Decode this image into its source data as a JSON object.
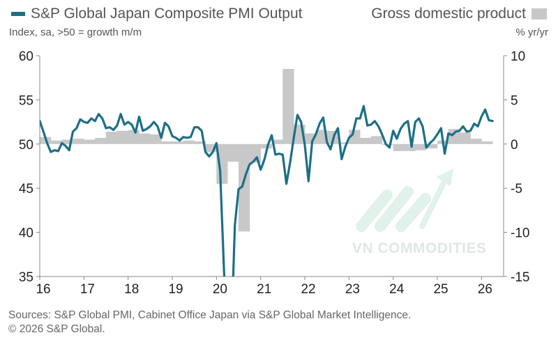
{
  "header": {
    "pmi_legend": "S&P Global Japan Composite PMI Output",
    "gdp_legend": "Gross domestic product",
    "left_axis_title": "Index, sa, >50 = growth m/m",
    "right_axis_title": "% yr/yr"
  },
  "footer": {
    "line1": "Sources: S&P Global PMI, Cabinet Office Japan via S&P Global Market Intelligence.",
    "line2": "© 2026 S&P Global."
  },
  "watermark": {
    "text": "VN COMMODITIES"
  },
  "colors": {
    "pmi": "#1c6f87",
    "gdp": "#c8c8c8",
    "axis": "#888888"
  },
  "chart_data": {
    "type": "bar+line",
    "title": "S&P Global Japan Composite PMI Output vs Gross domestic product",
    "x_labels": [
      "16",
      "17",
      "18",
      "19",
      "20",
      "21",
      "22",
      "23",
      "24",
      "25",
      "26"
    ],
    "x_range": [
      2016.0,
      2026.5
    ],
    "left_axis": {
      "label": "Index, sa, >50 = growth m/m",
      "ylim": [
        35,
        60
      ],
      "ticks": [
        35,
        40,
        45,
        50,
        55,
        60
      ]
    },
    "right_axis": {
      "label": "% yr/yr",
      "ylim": [
        -15,
        10
      ],
      "ticks": [
        -15,
        -10,
        -5,
        0,
        5,
        10
      ]
    },
    "series": [
      {
        "name": "Gross domestic product",
        "type": "bar",
        "axis": "right",
        "x": [
          2016.0,
          2016.25,
          2016.5,
          2016.75,
          2017.0,
          2017.25,
          2017.5,
          2017.75,
          2018.0,
          2018.25,
          2018.5,
          2018.75,
          2019.0,
          2019.25,
          2019.5,
          2019.75,
          2020.0,
          2020.25,
          2020.5,
          2020.75,
          2021.0,
          2021.25,
          2021.5,
          2021.75,
          2022.0,
          2022.25,
          2022.5,
          2022.75,
          2023.0,
          2023.25,
          2023.5,
          2023.75,
          2024.0,
          2024.25,
          2024.5,
          2024.75,
          2025.0,
          2025.25,
          2025.5,
          2025.75,
          2026.0
        ],
        "values": [
          0.8,
          0.4,
          0.5,
          0.6,
          0.5,
          0.7,
          1.4,
          1.5,
          1.6,
          1.2,
          1.1,
          0.3,
          0.3,
          0.4,
          0.3,
          -0.9,
          -4.5,
          -2.0,
          -9.9,
          -2.1,
          -0.5,
          0.5,
          8.5,
          2.2,
          1.2,
          1.6,
          1.5,
          0.2,
          1.6,
          0.7,
          0.9,
          -0.1,
          -0.8,
          -0.8,
          -0.7,
          -0.5,
          0.4,
          1.7,
          1.3,
          0.6,
          0.3
        ]
      },
      {
        "name": "S&P Global Japan Composite PMI Output",
        "type": "line",
        "axis": "left",
        "x": [
          2016.0,
          2016.0833,
          2016.1667,
          2016.25,
          2016.3333,
          2016.4167,
          2016.5,
          2016.5833,
          2016.6667,
          2016.75,
          2016.8333,
          2016.9167,
          2017.0,
          2017.0833,
          2017.1667,
          2017.25,
          2017.3333,
          2017.4167,
          2017.5,
          2017.5833,
          2017.6667,
          2017.75,
          2017.8333,
          2017.9167,
          2018.0,
          2018.0833,
          2018.1667,
          2018.25,
          2018.3333,
          2018.4167,
          2018.5,
          2018.5833,
          2018.6667,
          2018.75,
          2018.8333,
          2018.9167,
          2019.0,
          2019.0833,
          2019.1667,
          2019.25,
          2019.3333,
          2019.4167,
          2019.5,
          2019.5833,
          2019.6667,
          2019.75,
          2019.8333,
          2019.9167,
          2020.0,
          2020.0833,
          2020.1667,
          2020.25,
          2020.3333,
          2020.4167,
          2020.5,
          2020.5833,
          2020.6667,
          2020.75,
          2020.8333,
          2020.9167,
          2021.0,
          2021.0833,
          2021.1667,
          2021.25,
          2021.3333,
          2021.4167,
          2021.5,
          2021.5833,
          2021.6667,
          2021.75,
          2021.8333,
          2021.9167,
          2022.0,
          2022.0833,
          2022.1667,
          2022.25,
          2022.3333,
          2022.4167,
          2022.5,
          2022.5833,
          2022.6667,
          2022.75,
          2022.8333,
          2022.9167,
          2023.0,
          2023.0833,
          2023.1667,
          2023.25,
          2023.3333,
          2023.4167,
          2023.5,
          2023.5833,
          2023.6667,
          2023.75,
          2023.8333,
          2023.9167,
          2024.0,
          2024.0833,
          2024.1667,
          2024.25,
          2024.3333,
          2024.4167,
          2024.5,
          2024.5833,
          2024.6667,
          2024.75,
          2024.8333,
          2024.9167,
          2025.0,
          2025.0833,
          2025.1667,
          2025.25,
          2025.3333,
          2025.4167,
          2025.5,
          2025.5833,
          2025.6667,
          2025.75,
          2025.8333,
          2025.9167,
          2026.0,
          2026.0833,
          2026.1667,
          2026.25
        ],
        "values": [
          52.6,
          51.4,
          50.1,
          49.1,
          49.3,
          49.2,
          50.1,
          49.8,
          49.3,
          51.4,
          51.8,
          52.8,
          52.5,
          52.4,
          52.9,
          52.6,
          53.4,
          52.9,
          51.8,
          51.9,
          51.6,
          52.1,
          53.4,
          52.2,
          52.5,
          52.2,
          51.3,
          53.1,
          51.5,
          51.7,
          52.0,
          52.5,
          52.0,
          50.7,
          52.4,
          52.0,
          50.9,
          50.7,
          50.4,
          50.8,
          50.7,
          50.8,
          51.9,
          51.9,
          51.5,
          49.1,
          48.6,
          49.1,
          50.1,
          47.0,
          36.2,
          25.8,
          27.8,
          40.8,
          44.9,
          45.2,
          46.6,
          47.7,
          48.0,
          48.5,
          47.1,
          48.2,
          49.9,
          51.0,
          48.8,
          48.9,
          48.8,
          45.5,
          47.9,
          50.7,
          53.3,
          52.5,
          49.9,
          45.8,
          50.3,
          51.1,
          52.3,
          53.0,
          50.2,
          49.4,
          51.0,
          51.8,
          48.3,
          49.7,
          50.7,
          51.1,
          52.9,
          52.9,
          54.3,
          52.1,
          52.2,
          52.6,
          52.0,
          51.1,
          50.0,
          49.6,
          51.5,
          50.6,
          51.7,
          52.3,
          52.6,
          49.7,
          52.5,
          52.9,
          52.0,
          49.6,
          50.1,
          50.5,
          51.1,
          51.8,
          48.9,
          51.2,
          51.0,
          51.4,
          51.5,
          52.0,
          51.4,
          51.5,
          52.3,
          52.0,
          53.1,
          53.9,
          52.7,
          52.6
        ]
      }
    ]
  }
}
